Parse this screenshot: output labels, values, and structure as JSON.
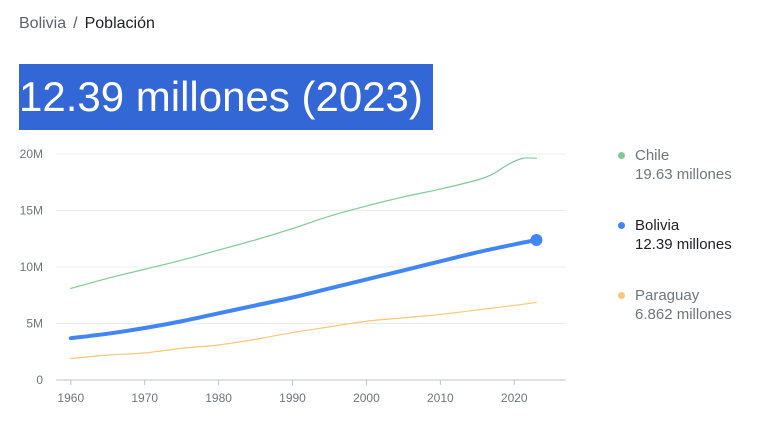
{
  "breadcrumb": {
    "parent": "Bolivia",
    "separator": "/",
    "current": "Población"
  },
  "headline": "12.39 millones (2023)",
  "legend": [
    {
      "name": "Chile",
      "value": "19.63 millones",
      "color": "#81c995",
      "state": "dim"
    },
    {
      "name": "Bolivia",
      "value": "12.39 millones",
      "color": "#4285f4",
      "state": "active"
    },
    {
      "name": "Paraguay",
      "value": "6.862 millones",
      "color": "#fbc774",
      "state": "dim"
    }
  ],
  "chart_data": {
    "type": "line",
    "title": "",
    "xlabel": "",
    "ylabel": "",
    "xlim": [
      1958,
      2027
    ],
    "ylim": [
      0,
      20
    ],
    "grid": true,
    "legend_position": "right",
    "x_ticks": [
      1960,
      1970,
      1980,
      1990,
      2000,
      2010,
      2020
    ],
    "x_tick_labels": [
      "1960",
      "1970",
      "1980",
      "1990",
      "2000",
      "2010",
      "2020"
    ],
    "y_ticks": [
      0,
      5,
      10,
      15,
      20
    ],
    "y_tick_labels": [
      "0",
      "5M",
      "10M",
      "15M",
      "20M"
    ],
    "highlight": {
      "series": "Bolivia",
      "x": 2023,
      "y": 12.39
    },
    "series": [
      {
        "name": "Chile",
        "color": "#81c995",
        "width": 1.2,
        "x": [
          1960,
          1965,
          1970,
          1975,
          1980,
          1985,
          1990,
          1995,
          2000,
          2005,
          2010,
          2015,
          2017,
          2019,
          2021,
          2023
        ],
        "values": [
          8.1,
          9.0,
          9.8,
          10.6,
          11.5,
          12.4,
          13.4,
          14.5,
          15.4,
          16.2,
          16.9,
          17.7,
          18.2,
          19.0,
          19.6,
          19.63
        ]
      },
      {
        "name": "Bolivia",
        "color": "#4285f4",
        "width": 4,
        "x": [
          1960,
          1965,
          1970,
          1975,
          1980,
          1985,
          1990,
          1995,
          2000,
          2005,
          2010,
          2015,
          2020,
          2023
        ],
        "values": [
          3.7,
          4.1,
          4.6,
          5.2,
          5.9,
          6.6,
          7.3,
          8.1,
          8.9,
          9.7,
          10.5,
          11.3,
          12.0,
          12.39
        ]
      },
      {
        "name": "Paraguay",
        "color": "#fbc774",
        "width": 1.2,
        "x": [
          1960,
          1965,
          1970,
          1975,
          1980,
          1985,
          1990,
          1995,
          2000,
          2005,
          2010,
          2015,
          2020,
          2023
        ],
        "values": [
          1.9,
          2.2,
          2.4,
          2.8,
          3.1,
          3.6,
          4.2,
          4.7,
          5.2,
          5.5,
          5.8,
          6.2,
          6.6,
          6.862
        ]
      }
    ]
  }
}
